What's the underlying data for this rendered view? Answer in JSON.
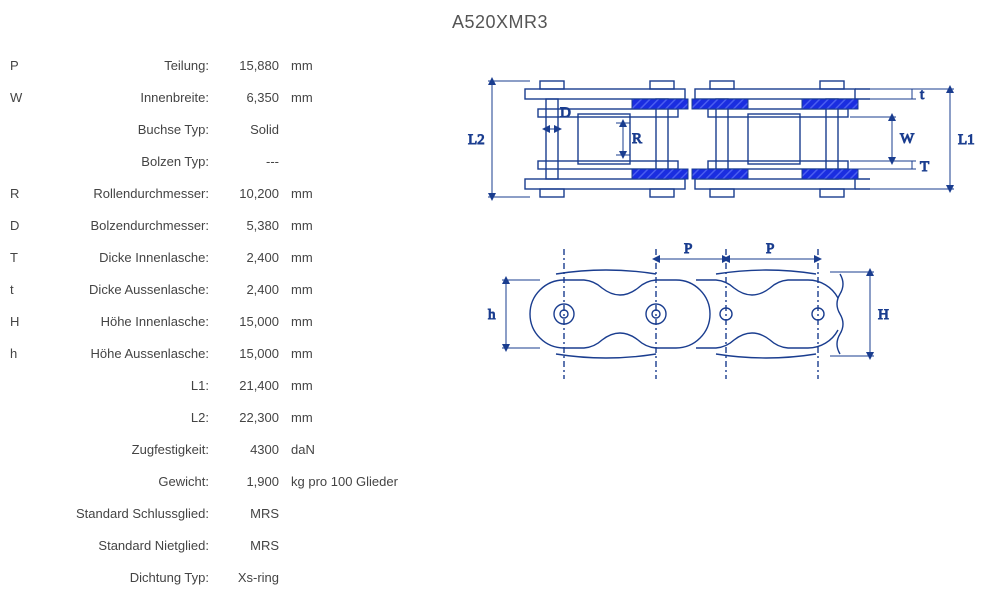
{
  "title": "A520XMR3",
  "specs": [
    {
      "sym": "P",
      "label": "Teilung:",
      "value": "15,880",
      "unit": "mm"
    },
    {
      "sym": "W",
      "label": "Innenbreite:",
      "value": "6,350",
      "unit": "mm"
    },
    {
      "sym": "",
      "label": "Buchse Typ:",
      "value": "Solid",
      "unit": ""
    },
    {
      "sym": "",
      "label": "Bolzen Typ:",
      "value": "---",
      "unit": ""
    },
    {
      "sym": "R",
      "label": "Rollendurchmesser:",
      "value": "10,200",
      "unit": "mm"
    },
    {
      "sym": "D",
      "label": "Bolzendurchmesser:",
      "value": "5,380",
      "unit": "mm"
    },
    {
      "sym": "T",
      "label": "Dicke Innenlasche:",
      "value": "2,400",
      "unit": "mm"
    },
    {
      "sym": "t",
      "label": "Dicke Aussenlasche:",
      "value": "2,400",
      "unit": "mm"
    },
    {
      "sym": "H",
      "label": "Höhe Innenlasche:",
      "value": "15,000",
      "unit": "mm"
    },
    {
      "sym": "h",
      "label": "Höhe Aussenlasche:",
      "value": "15,000",
      "unit": "mm"
    },
    {
      "sym": "",
      "label": "L1:",
      "value": "21,400",
      "unit": "mm"
    },
    {
      "sym": "",
      "label": "L2:",
      "value": "22,300",
      "unit": "mm"
    },
    {
      "sym": "",
      "label": "Zugfestigkeit:",
      "value": "4300",
      "unit": "daN"
    },
    {
      "sym": "",
      "label": "Gewicht:",
      "value": "1,900",
      "unit": "kg pro 100 Glieder"
    },
    {
      "sym": "",
      "label": "Standard Schlussglied:",
      "value": "MRS",
      "unit": ""
    },
    {
      "sym": "",
      "label": "Standard Nietglied:",
      "value": "MRS",
      "unit": ""
    },
    {
      "sym": "",
      "label": "Dichtung Typ:",
      "value": "Xs-ring",
      "unit": ""
    }
  ],
  "diagram": {
    "stroke": "#1a3d8f",
    "stroke_width": 1.4,
    "seal_fill": "#1a2de0",
    "hatch": "#2a3de8",
    "bg": "#ffffff",
    "label_color": "#1a3d8f",
    "label_fontsize": 15,
    "top": {
      "labels": [
        "L2",
        "D",
        "R",
        "W",
        "T",
        "t",
        "L1"
      ]
    },
    "side": {
      "labels": [
        "P",
        "P",
        "h",
        "H"
      ]
    }
  }
}
